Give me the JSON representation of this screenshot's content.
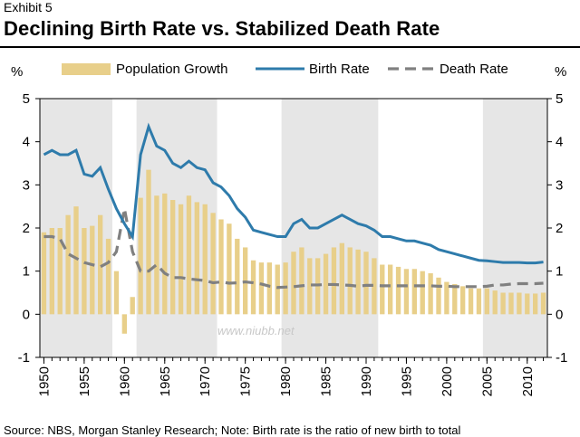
{
  "header": {
    "exhibit": "Exhibit 5",
    "title": "Declining Birth Rate vs. Stabilized Death Rate"
  },
  "footer": {
    "source": "Source: NBS, Morgan Stanley Research; Note: Birth rate is the ratio of new birth to total"
  },
  "watermark": "www.niubb.net",
  "colors": {
    "bars": "#e8cf8a",
    "birth": "#2e7bab",
    "death": "#808080",
    "shade": "#e6e6e6"
  },
  "chart_data": {
    "type": "bar",
    "y_unit_left": "%",
    "y_unit_right": "%",
    "ylim": [
      -1,
      5
    ],
    "yticks": [
      -1,
      0,
      1,
      2,
      3,
      4,
      5
    ],
    "xlim": [
      1950,
      2012
    ],
    "xticks": [
      1950,
      1955,
      1960,
      1965,
      1970,
      1975,
      1980,
      1985,
      1990,
      1995,
      2000,
      2005,
      2010
    ],
    "shaded_periods": [
      [
        1950,
        1958
      ],
      [
        1962,
        1971
      ],
      [
        1980,
        1991
      ],
      [
        2005,
        2012
      ]
    ],
    "legend": [
      "Population Growth",
      "Birth Rate",
      "Death Rate"
    ],
    "legend_position": "top",
    "x": [
      1950,
      1951,
      1952,
      1953,
      1954,
      1955,
      1956,
      1957,
      1958,
      1959,
      1960,
      1961,
      1962,
      1963,
      1964,
      1965,
      1966,
      1967,
      1968,
      1969,
      1970,
      1971,
      1972,
      1973,
      1974,
      1975,
      1976,
      1977,
      1978,
      1979,
      1980,
      1981,
      1982,
      1983,
      1984,
      1985,
      1986,
      1987,
      1988,
      1989,
      1990,
      1991,
      1992,
      1993,
      1994,
      1995,
      1996,
      1997,
      1998,
      1999,
      2000,
      2001,
      2002,
      2003,
      2004,
      2005,
      2006,
      2007,
      2008,
      2009,
      2010,
      2011,
      2012
    ],
    "series": [
      {
        "name": "Population Growth",
        "type": "bar",
        "values": [
          1.9,
          2.0,
          2.0,
          2.3,
          2.5,
          2.0,
          2.05,
          2.3,
          1.75,
          1.0,
          -0.45,
          0.4,
          2.7,
          3.35,
          2.75,
          2.8,
          2.65,
          2.55,
          2.75,
          2.6,
          2.55,
          2.35,
          2.2,
          2.1,
          1.75,
          1.55,
          1.25,
          1.2,
          1.2,
          1.15,
          1.2,
          1.45,
          1.55,
          1.3,
          1.3,
          1.4,
          1.55,
          1.65,
          1.55,
          1.5,
          1.45,
          1.3,
          1.15,
          1.15,
          1.1,
          1.05,
          1.05,
          1.0,
          0.95,
          0.85,
          0.75,
          0.7,
          0.65,
          0.6,
          0.6,
          0.6,
          0.55,
          0.5,
          0.5,
          0.5,
          0.48,
          0.48,
          0.5
        ]
      },
      {
        "name": "Birth Rate",
        "type": "line",
        "values": [
          3.7,
          3.8,
          3.7,
          3.7,
          3.8,
          3.25,
          3.2,
          3.4,
          2.9,
          2.45,
          2.1,
          1.8,
          3.7,
          4.35,
          3.9,
          3.8,
          3.5,
          3.4,
          3.55,
          3.4,
          3.35,
          3.05,
          2.95,
          2.75,
          2.45,
          2.25,
          1.95,
          1.9,
          1.85,
          1.8,
          1.8,
          2.1,
          2.2,
          2.0,
          2.0,
          2.1,
          2.2,
          2.3,
          2.2,
          2.1,
          2.05,
          1.95,
          1.8,
          1.8,
          1.75,
          1.7,
          1.7,
          1.65,
          1.6,
          1.5,
          1.45,
          1.4,
          1.35,
          1.3,
          1.25,
          1.24,
          1.22,
          1.2,
          1.2,
          1.2,
          1.19,
          1.19,
          1.21
        ]
      },
      {
        "name": "Death Rate",
        "type": "line",
        "values": [
          1.8,
          1.8,
          1.75,
          1.4,
          1.3,
          1.2,
          1.15,
          1.1,
          1.2,
          1.45,
          2.45,
          1.45,
          1.0,
          1.0,
          1.15,
          0.95,
          0.85,
          0.85,
          0.82,
          0.8,
          0.78,
          0.73,
          0.75,
          0.72,
          0.73,
          0.75,
          0.73,
          0.7,
          0.65,
          0.62,
          0.63,
          0.64,
          0.66,
          0.68,
          0.68,
          0.69,
          0.69,
          0.68,
          0.67,
          0.65,
          0.67,
          0.67,
          0.66,
          0.66,
          0.66,
          0.66,
          0.66,
          0.66,
          0.66,
          0.65,
          0.65,
          0.64,
          0.64,
          0.64,
          0.64,
          0.65,
          0.68,
          0.68,
          0.7,
          0.71,
          0.71,
          0.71,
          0.72
        ]
      }
    ]
  }
}
